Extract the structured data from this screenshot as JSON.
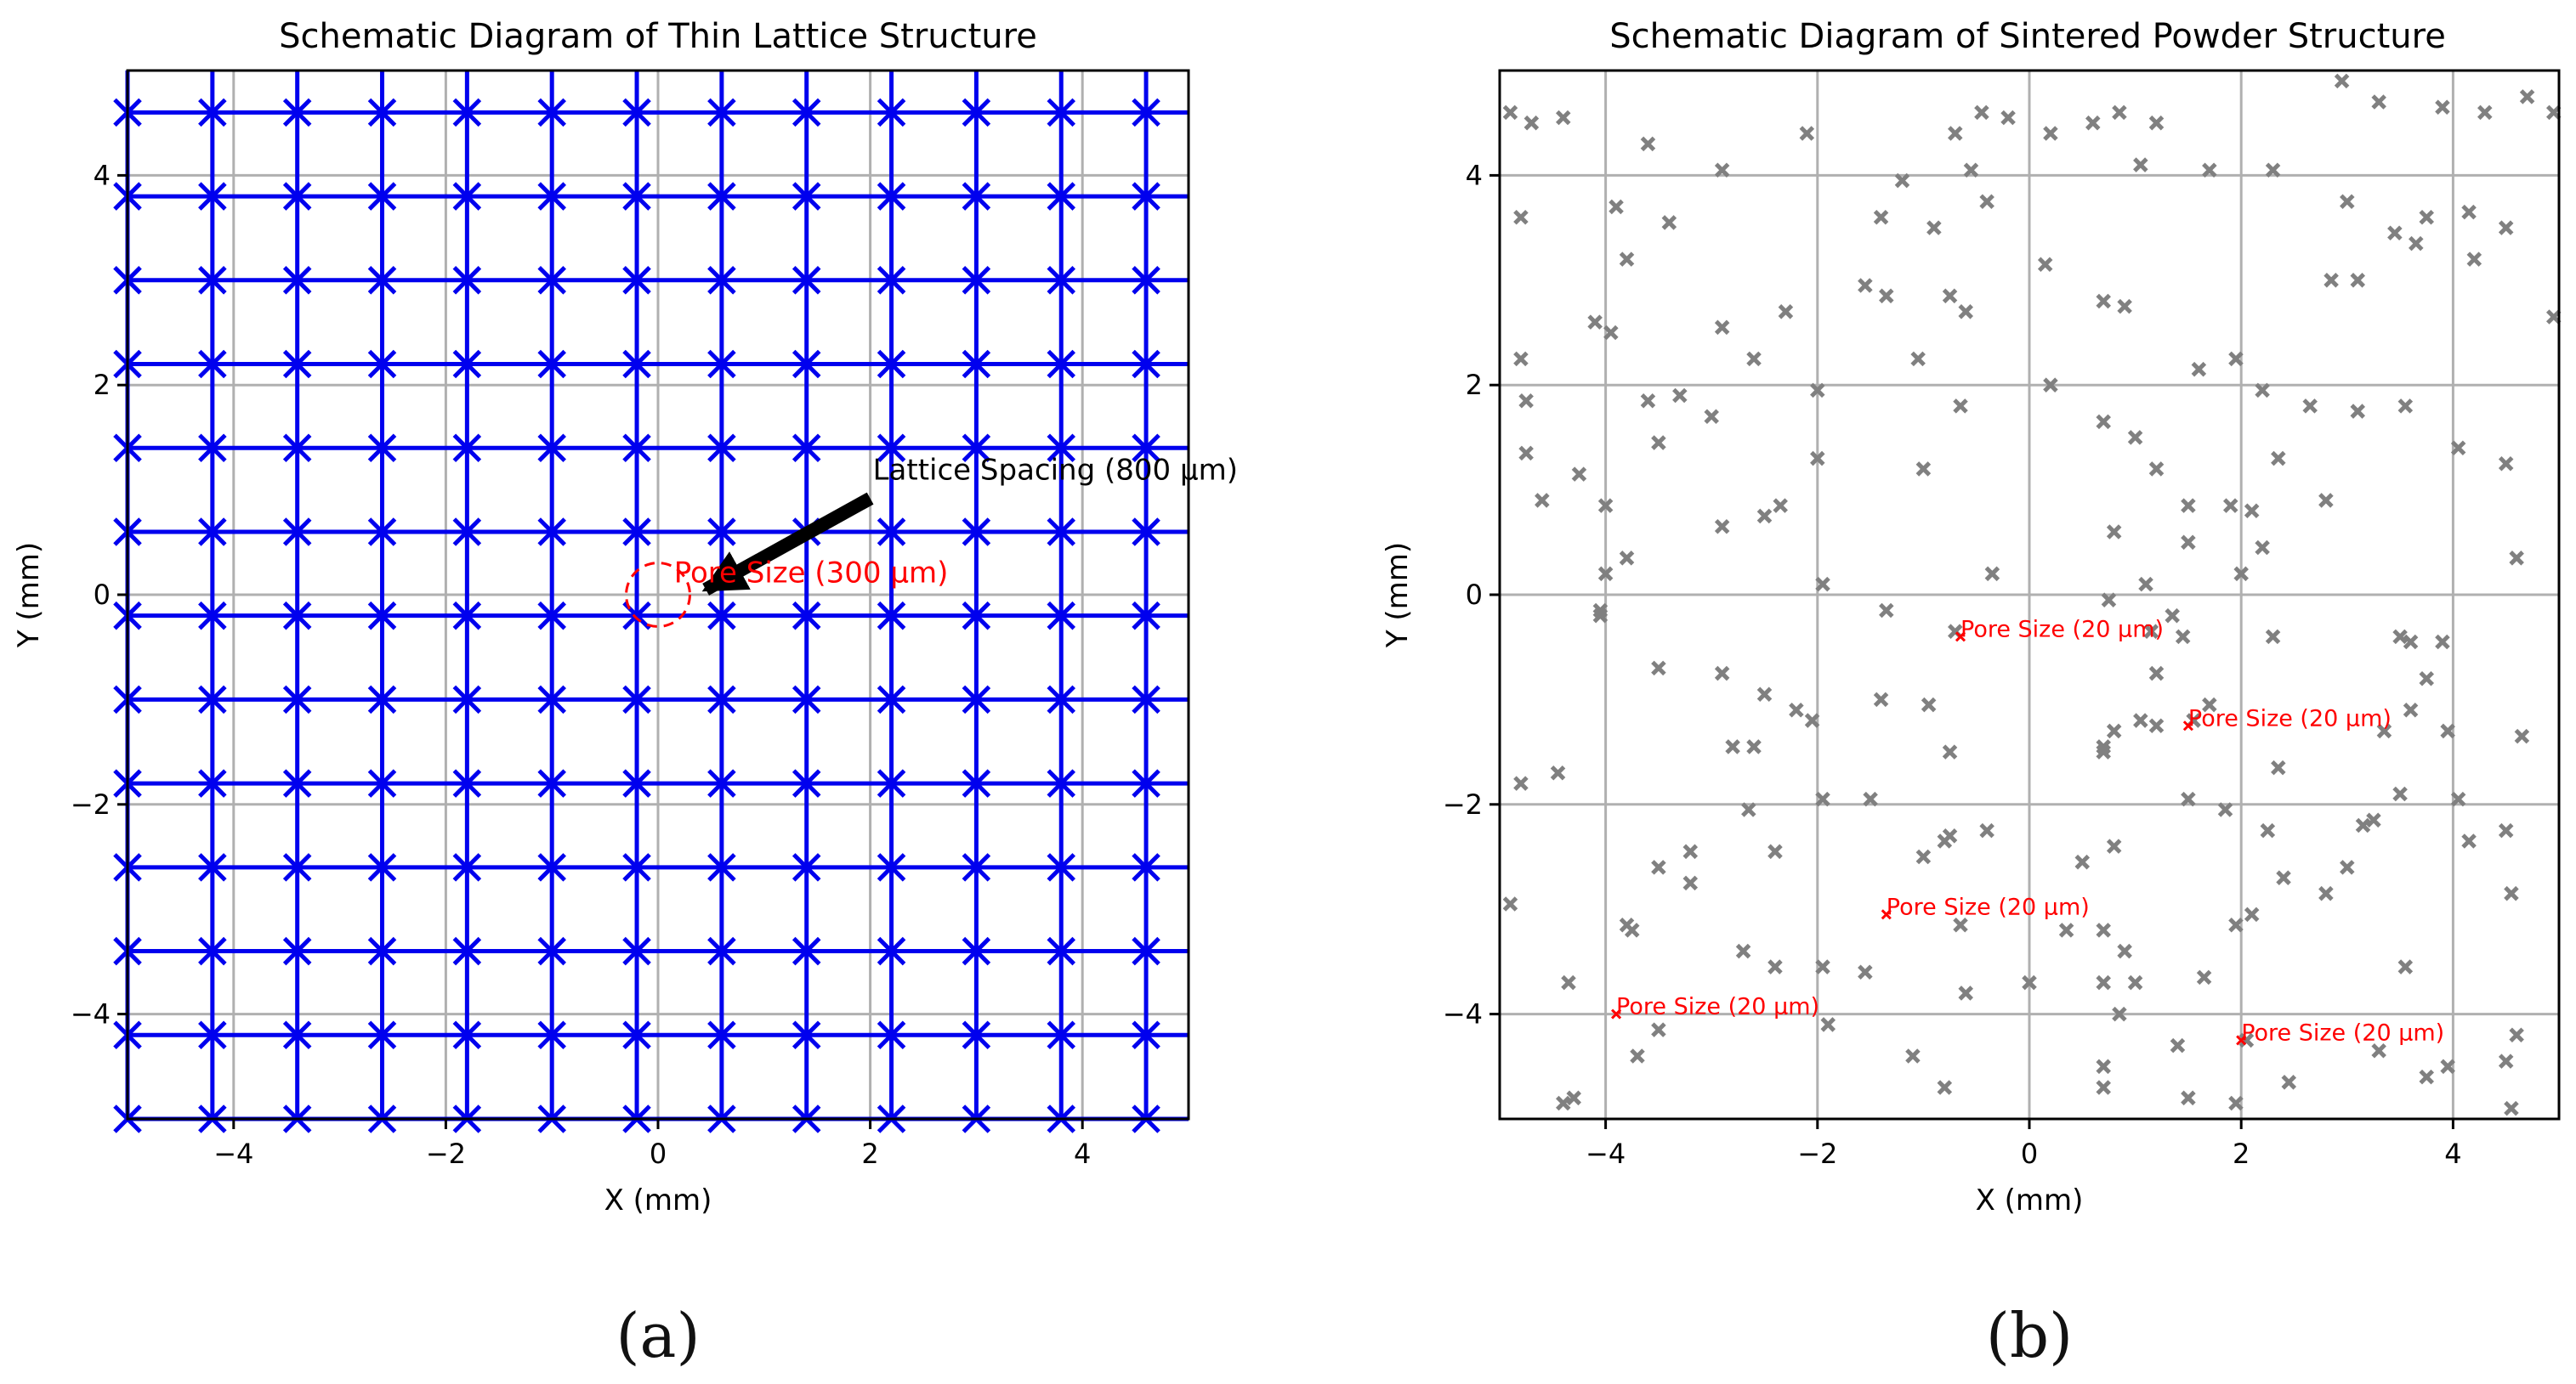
{
  "figure": {
    "captions": [
      "(a)",
      "(b)"
    ]
  },
  "chart_data": [
    {
      "type": "scatter",
      "title": "Schematic Diagram of Thin Lattice Structure",
      "xlabel": "X (mm)",
      "ylabel": "Y (mm)",
      "xlim": [
        -5,
        5
      ],
      "ylim": [
        -5,
        5
      ],
      "grid": true,
      "xticks": [
        -4,
        -2,
        0,
        2,
        4
      ],
      "yticks": [
        -4,
        -2,
        0,
        2,
        4
      ],
      "xtick_labels": [
        "−4",
        "−2",
        "0",
        "2",
        "4"
      ],
      "ytick_labels": [
        "−4",
        "−2",
        "0",
        "2",
        "4"
      ],
      "lattice": {
        "x": [
          -5.0,
          -4.2,
          -3.4,
          -2.6,
          -1.8,
          -1.0,
          -0.2,
          0.6,
          1.4,
          2.2,
          3.0,
          3.8,
          4.6
        ],
        "y": [
          -5.0,
          -4.2,
          -3.4,
          -2.6,
          -1.8,
          -1.0,
          -0.2,
          0.6,
          1.4,
          2.2,
          3.0,
          3.8,
          4.6
        ],
        "marker": "x",
        "color": "#0000ee"
      },
      "annotations": [
        {
          "text": "Lattice Spacing (800 μm)",
          "x": 2.0,
          "y": 1.0,
          "arrow_to": [
            0.45,
            0.05
          ],
          "color": "#000000"
        },
        {
          "text": "Pore Size (300 μm)",
          "x": 0.15,
          "y": 0.15,
          "color": "#ff0000"
        }
      ],
      "circle": {
        "cx": 0,
        "cy": 0,
        "r": 0.3,
        "color": "#ff0000"
      }
    },
    {
      "type": "scatter",
      "title": "Schematic Diagram of Sintered Powder Structure",
      "xlabel": "X (mm)",
      "ylabel": "Y (mm)",
      "xlim": [
        -5,
        5
      ],
      "ylim": [
        -5,
        5
      ],
      "grid": true,
      "xticks": [
        -4,
        -2,
        0,
        2,
        4
      ],
      "yticks": [
        -4,
        -2,
        0,
        2,
        4
      ],
      "xtick_labels": [
        "−4",
        "−2",
        "0",
        "2",
        "4"
      ],
      "ytick_labels": [
        "−4",
        "−2",
        "0",
        "2",
        "4"
      ],
      "series": [
        {
          "name": "particles",
          "marker": "x",
          "color": "#808080",
          "points": [
            [
              -4.7,
              4.5
            ],
            [
              -4.4,
              4.55
            ],
            [
              -4.9,
              4.6
            ],
            [
              -4.8,
              3.6
            ],
            [
              -3.9,
              3.7
            ],
            [
              -3.8,
              3.2
            ],
            [
              -3.6,
              4.3
            ],
            [
              -3.4,
              3.55
            ],
            [
              -2.9,
              4.05
            ],
            [
              -2.1,
              4.4
            ],
            [
              -1.4,
              3.6
            ],
            [
              -1.2,
              3.95
            ],
            [
              -0.9,
              3.5
            ],
            [
              -0.7,
              4.4
            ],
            [
              -0.55,
              4.05
            ],
            [
              -0.45,
              4.6
            ],
            [
              -0.2,
              4.55
            ],
            [
              0.2,
              4.4
            ],
            [
              0.6,
              4.5
            ],
            [
              0.85,
              4.6
            ],
            [
              1.2,
              4.5
            ],
            [
              1.7,
              4.05
            ],
            [
              2.3,
              4.05
            ],
            [
              2.95,
              4.9
            ],
            [
              3.3,
              4.7
            ],
            [
              3.75,
              3.6
            ],
            [
              3.9,
              4.65
            ],
            [
              4.3,
              4.6
            ],
            [
              4.7,
              4.75
            ],
            [
              4.95,
              4.6
            ],
            [
              -0.4,
              3.75
            ],
            [
              0.15,
              3.15
            ],
            [
              0.7,
              2.8
            ],
            [
              0.9,
              2.75
            ],
            [
              1.05,
              4.1
            ],
            [
              -0.75,
              2.85
            ],
            [
              -0.6,
              2.7
            ],
            [
              -1.05,
              2.25
            ],
            [
              -1.55,
              2.95
            ],
            [
              -1.35,
              2.85
            ],
            [
              -2.3,
              2.7
            ],
            [
              -2.9,
              2.55
            ],
            [
              -2.6,
              2.25
            ],
            [
              -4.1,
              2.6
            ],
            [
              -3.95,
              2.5
            ],
            [
              -4.8,
              2.25
            ],
            [
              -4.75,
              1.85
            ],
            [
              -4.75,
              1.35
            ],
            [
              -4.6,
              0.9
            ],
            [
              -4.25,
              1.15
            ],
            [
              -3.6,
              1.85
            ],
            [
              -3.3,
              1.9
            ],
            [
              -3.5,
              1.45
            ],
            [
              -3.0,
              1.7
            ],
            [
              -2.0,
              1.95
            ],
            [
              -2.0,
              1.3
            ],
            [
              -3.8,
              0.35
            ],
            [
              -4.0,
              0.85
            ],
            [
              -4.0,
              0.2
            ],
            [
              -4.05,
              -0.15
            ],
            [
              -4.05,
              -0.2
            ],
            [
              -2.9,
              0.65
            ],
            [
              -2.5,
              0.75
            ],
            [
              -2.35,
              0.85
            ],
            [
              -1.95,
              0.1
            ],
            [
              -1.0,
              1.2
            ],
            [
              -0.65,
              1.8
            ],
            [
              0.2,
              2.0
            ],
            [
              0.7,
              1.65
            ],
            [
              1.0,
              1.5
            ],
            [
              1.2,
              1.2
            ],
            [
              1.5,
              0.85
            ],
            [
              1.5,
              0.5
            ],
            [
              1.9,
              0.85
            ],
            [
              2.0,
              0.2
            ],
            [
              2.1,
              0.8
            ],
            [
              2.2,
              0.45
            ],
            [
              2.2,
              1.95
            ],
            [
              1.6,
              2.15
            ],
            [
              1.95,
              2.25
            ],
            [
              2.35,
              1.3
            ],
            [
              2.65,
              1.8
            ],
            [
              2.8,
              0.9
            ],
            [
              3.1,
              1.75
            ],
            [
              3.55,
              1.8
            ],
            [
              3.1,
              3.0
            ],
            [
              2.85,
              3.0
            ],
            [
              3.0,
              3.75
            ],
            [
              3.45,
              3.45
            ],
            [
              3.65,
              3.35
            ],
            [
              4.15,
              3.65
            ],
            [
              4.2,
              3.2
            ],
            [
              4.5,
              3.5
            ],
            [
              4.95,
              2.65
            ],
            [
              4.05,
              1.4
            ],
            [
              4.5,
              1.25
            ],
            [
              4.6,
              0.35
            ],
            [
              -0.35,
              0.2
            ],
            [
              0.8,
              0.6
            ],
            [
              1.1,
              0.1
            ],
            [
              0.75,
              -0.05
            ],
            [
              1.15,
              -0.35
            ],
            [
              1.2,
              -0.75
            ],
            [
              1.35,
              -0.2
            ],
            [
              1.45,
              -0.4
            ],
            [
              2.3,
              -0.4
            ],
            [
              3.5,
              -0.4
            ],
            [
              3.6,
              -0.45
            ],
            [
              3.9,
              -0.45
            ],
            [
              3.75,
              -0.8
            ],
            [
              -3.5,
              -0.7
            ],
            [
              -2.9,
              -0.75
            ],
            [
              -2.5,
              -0.95
            ],
            [
              -2.2,
              -1.1
            ],
            [
              -2.05,
              -1.2
            ],
            [
              -1.35,
              -0.15
            ],
            [
              -1.4,
              -1.0
            ],
            [
              -0.95,
              -1.05
            ],
            [
              -0.75,
              -1.5
            ],
            [
              -0.7,
              -0.35
            ],
            [
              0.7,
              -1.45
            ],
            [
              0.7,
              -1.5
            ],
            [
              0.8,
              -1.3
            ],
            [
              1.05,
              -1.2
            ],
            [
              1.2,
              -1.25
            ],
            [
              1.7,
              -1.05
            ],
            [
              1.55,
              -1.2
            ],
            [
              2.35,
              -1.65
            ],
            [
              3.35,
              -1.3
            ],
            [
              3.6,
              -1.1
            ],
            [
              3.95,
              -1.3
            ],
            [
              4.05,
              -1.95
            ],
            [
              4.15,
              -2.35
            ],
            [
              4.5,
              -2.25
            ],
            [
              4.65,
              -1.35
            ],
            [
              4.55,
              -2.85
            ],
            [
              -4.8,
              -1.8
            ],
            [
              -4.45,
              -1.7
            ],
            [
              -2.8,
              -1.45
            ],
            [
              -2.6,
              -1.45
            ],
            [
              -2.65,
              -2.05
            ],
            [
              -2.4,
              -2.45
            ],
            [
              -1.95,
              -1.95
            ],
            [
              -1.5,
              -1.95
            ],
            [
              -1.55,
              -3.6
            ],
            [
              -0.4,
              -2.25
            ],
            [
              -0.8,
              -2.35
            ],
            [
              -1.0,
              -2.5
            ],
            [
              -0.75,
              -2.3
            ],
            [
              0.5,
              -2.55
            ],
            [
              0.8,
              -2.4
            ],
            [
              1.5,
              -1.95
            ],
            [
              1.85,
              -2.05
            ],
            [
              2.25,
              -2.25
            ],
            [
              2.4,
              -2.7
            ],
            [
              2.8,
              -2.85
            ],
            [
              3.0,
              -2.6
            ],
            [
              3.15,
              -2.2
            ],
            [
              3.25,
              -2.15
            ],
            [
              3.5,
              -1.9
            ],
            [
              -4.9,
              -2.95
            ],
            [
              -4.35,
              -3.7
            ],
            [
              -3.8,
              -3.15
            ],
            [
              -3.75,
              -3.2
            ],
            [
              -3.5,
              -2.6
            ],
            [
              -3.2,
              -2.45
            ],
            [
              -3.2,
              -2.75
            ],
            [
              -2.7,
              -3.4
            ],
            [
              -2.4,
              -3.55
            ],
            [
              -1.95,
              -3.55
            ],
            [
              -0.65,
              -3.15
            ],
            [
              -0.6,
              -3.8
            ],
            [
              0.0,
              -3.7
            ],
            [
              0.35,
              -3.2
            ],
            [
              0.7,
              -3.7
            ],
            [
              0.7,
              -3.2
            ],
            [
              0.9,
              -3.4
            ],
            [
              1.0,
              -3.7
            ],
            [
              0.85,
              -4.0
            ],
            [
              1.65,
              -3.65
            ],
            [
              1.95,
              -3.15
            ],
            [
              2.1,
              -3.05
            ],
            [
              3.55,
              -3.55
            ],
            [
              -4.3,
              -4.8
            ],
            [
              -4.4,
              -4.85
            ],
            [
              -3.7,
              -4.4
            ],
            [
              -3.5,
              -4.15
            ],
            [
              -1.9,
              -4.1
            ],
            [
              -1.1,
              -4.4
            ],
            [
              -0.8,
              -4.7
            ],
            [
              0.7,
              -4.7
            ],
            [
              0.7,
              -4.5
            ],
            [
              1.4,
              -4.3
            ],
            [
              1.5,
              -4.8
            ],
            [
              1.95,
              -4.85
            ],
            [
              2.05,
              -4.25
            ],
            [
              2.45,
              -4.65
            ],
            [
              3.3,
              -4.35
            ],
            [
              3.75,
              -4.6
            ],
            [
              3.95,
              -4.5
            ],
            [
              4.5,
              -4.45
            ],
            [
              4.6,
              -4.2
            ],
            [
              4.55,
              -4.9
            ]
          ]
        },
        {
          "name": "pores",
          "marker": "x",
          "color": "#ff0000",
          "points": [
            [
              -0.65,
              -0.4
            ],
            [
              1.5,
              -1.25
            ],
            [
              -1.35,
              -3.05
            ],
            [
              -3.9,
              -4.0
            ],
            [
              2.0,
              -4.25
            ]
          ]
        }
      ],
      "annotations": [
        {
          "text": "Pore Size (20 μm)",
          "x": -0.65,
          "y": -0.4,
          "color": "#ff0000"
        },
        {
          "text": "Pore Size (20 μm)",
          "x": 1.5,
          "y": -1.25,
          "color": "#ff0000"
        },
        {
          "text": "Pore Size (20 μm)",
          "x": -1.35,
          "y": -3.05,
          "color": "#ff0000"
        },
        {
          "text": "Pore Size (20 μm)",
          "x": -3.9,
          "y": -4.0,
          "color": "#ff0000"
        },
        {
          "text": "Pore Size (20 μm)",
          "x": 2.0,
          "y": -4.25,
          "color": "#ff0000"
        }
      ]
    }
  ]
}
